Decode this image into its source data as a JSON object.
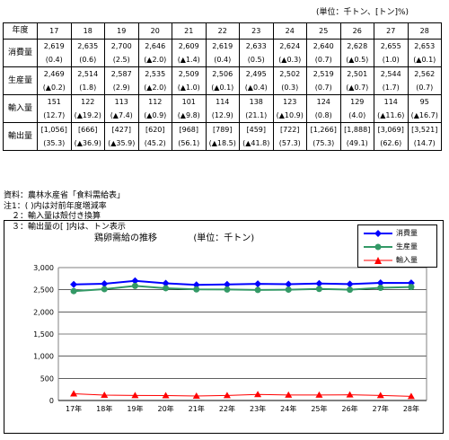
{
  "unit_note": "(単位：千トン、[トン]%)",
  "table": {
    "header_label": "年度",
    "years": [
      "17",
      "18",
      "19",
      "20",
      "21",
      "22",
      "23",
      "24",
      "25",
      "26",
      "27",
      "28"
    ],
    "rows": [
      {
        "label": "消費量",
        "values": [
          "2,619",
          "2,635",
          "2,700",
          "2,646",
          "2,609",
          "2,619",
          "2,633",
          "2,624",
          "2,640",
          "2,628",
          "2,655",
          "2,653"
        ],
        "sub": [
          "(0.4)",
          "(0.6)",
          "(2.5)",
          "(▲2.0)",
          "(▲1.4)",
          "(0.4)",
          "(0.5)",
          "(▲0.3)",
          "(0.7)",
          "(▲0.5)",
          "(1.0)",
          "(▲0.1)"
        ]
      },
      {
        "label": "生産量",
        "values": [
          "2,469",
          "2,514",
          "2,587",
          "2,535",
          "2,509",
          "2,506",
          "2,495",
          "2,502",
          "2,519",
          "2,501",
          "2,544",
          "2,562"
        ],
        "sub": [
          "(▲0.2)",
          "(1.8)",
          "(2.9)",
          "(▲2.0)",
          "(▲1.0)",
          "(▲0.1)",
          "(▲0.4)",
          "(0.3)",
          "(0.7)",
          "(▲0.7)",
          "(1.7)",
          "(0.7)"
        ]
      },
      {
        "label": "輸入量",
        "values": [
          "151",
          "122",
          "113",
          "112",
          "101",
          "114",
          "138",
          "123",
          "124",
          "129",
          "114",
          "95"
        ],
        "sub": [
          "(12.7)",
          "(▲19.2)",
          "(▲7.4)",
          "(▲0.9)",
          "(▲9.8)",
          "(12.9)",
          "(21.1)",
          "(▲10.9)",
          "(0.8)",
          "(4.0)",
          "(▲11.6)",
          "(▲16.7)"
        ]
      },
      {
        "label": "輸出量",
        "values": [
          "[1,056]",
          "[666]",
          "[427]",
          "[620]",
          "[968]",
          "[789]",
          "[459]",
          "[722]",
          "[1,266]",
          "[1,888]",
          "[3,069]",
          "[3,521]"
        ],
        "sub": [
          "(35.3)",
          "(▲36.9)",
          "(▲35.9)",
          "(45.2)",
          "(56.1)",
          "(▲18.5)",
          "(▲41.8)",
          "(57.3)",
          "(75.3)",
          "(49.1)",
          "(62.6)",
          "(14.7)"
        ]
      }
    ]
  },
  "notes": [
    "資料：農林水産省「食料需給表」",
    "注1：(  )内は対前年度増減率",
    "　２：輸入量は殻付き換算",
    "　３：輸出量の[ ]内は、トン表示"
  ],
  "chart_data": {
    "type": "line",
    "title": "鶏卵需給の推移",
    "subtitle": "(単位：千トン)",
    "categories": [
      "17年",
      "18年",
      "19年",
      "20年",
      "21年",
      "22年",
      "23年",
      "24年",
      "25年",
      "26年",
      "27年",
      "28年"
    ],
    "ylim": [
      0,
      3000
    ],
    "yticks": [
      "0",
      "500",
      "1,000",
      "1,500",
      "2,000",
      "2,500",
      "3,000"
    ],
    "grid": true,
    "legend_position": "top-right",
    "series": [
      {
        "name": "消費量",
        "color": "#0000ff",
        "marker": "diamond",
        "values": [
          2619,
          2635,
          2700,
          2646,
          2609,
          2619,
          2633,
          2624,
          2640,
          2628,
          2655,
          2653
        ]
      },
      {
        "name": "生産量",
        "color": "#339966",
        "marker": "circle",
        "values": [
          2469,
          2514,
          2587,
          2535,
          2509,
          2506,
          2495,
          2502,
          2519,
          2501,
          2544,
          2562
        ]
      },
      {
        "name": "輸入量",
        "color": "#ff0000",
        "marker": "triangle",
        "values": [
          151,
          122,
          113,
          112,
          101,
          114,
          138,
          123,
          124,
          129,
          114,
          95
        ]
      }
    ]
  }
}
